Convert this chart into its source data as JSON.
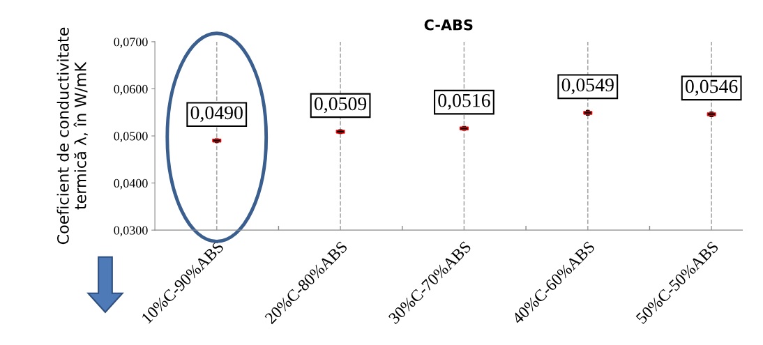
{
  "chart_data": {
    "type": "scatter",
    "title": "C-ABS",
    "ylabel": "Coeficient de conductivitate\ntermică λ, în W/mK",
    "categories": [
      "10%C-90%ABS",
      "20%C-80%ABS",
      "30%C-70%ABS",
      "40%C-60%ABS",
      "50%C-50%ABS"
    ],
    "values": [
      0.049,
      0.0509,
      0.0516,
      0.0549,
      0.0546
    ],
    "errors": [
      0.0005,
      0.0005,
      0.0005,
      0.0006,
      0.0006
    ],
    "value_labels": [
      "0,0490",
      "0,0509",
      "0,0516",
      "0,0549",
      "0,0546"
    ],
    "color": "#ff0000",
    "ylim": [
      0.03,
      0.07
    ],
    "yticks": [
      {
        "value": 0.03,
        "label": "0,0300"
      },
      {
        "value": 0.04,
        "label": "0,0400"
      },
      {
        "value": 0.05,
        "label": "0,0500"
      },
      {
        "value": 0.06,
        "label": "0,0600"
      },
      {
        "value": 0.07,
        "label": "0,0700"
      }
    ],
    "grid": "x"
  }
}
